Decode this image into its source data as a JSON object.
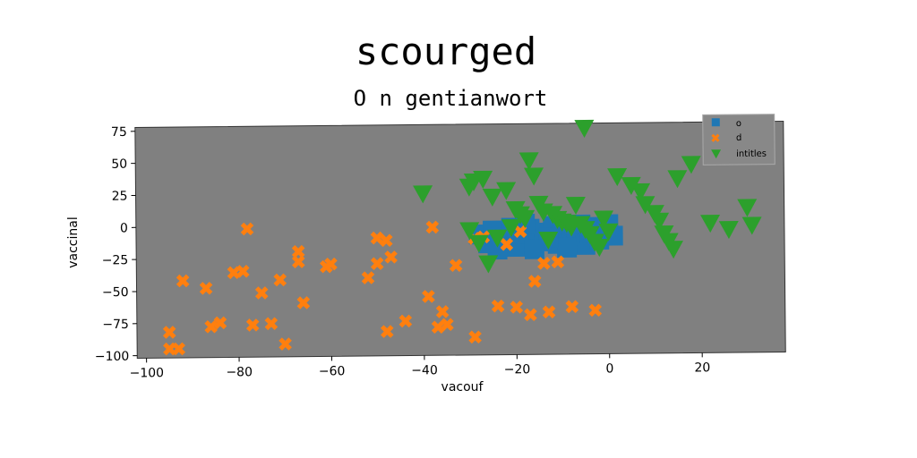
{
  "chart_data": {
    "type": "scatter",
    "title": "scourged",
    "subtitle": "O n gentianwort",
    "xlabel": "vacouf",
    "ylabel": "vaccinal",
    "xlim": [
      -102,
      38
    ],
    "ylim": [
      -102,
      78
    ],
    "xticks": [
      -100,
      -80,
      -60,
      -40,
      -20,
      0,
      20
    ],
    "yticks": [
      -100,
      -75,
      -50,
      -25,
      0,
      25,
      50,
      75
    ],
    "xtick_labels": [
      "−100",
      "−80",
      "−60",
      "−40",
      "−20",
      "0",
      "20"
    ],
    "ytick_labels": [
      "−100",
      "−75",
      "−50",
      "−25",
      "0",
      "25",
      "50",
      "75"
    ],
    "grid": false,
    "legend_position": "top-right",
    "plot_background": "#808080",
    "series": [
      {
        "name": "o",
        "marker": "square",
        "color": "#1f77b4",
        "points": [
          [
            -28,
            -8
          ],
          [
            -25,
            -5
          ],
          [
            -23,
            -12
          ],
          [
            -21,
            -3
          ],
          [
            -20,
            -18
          ],
          [
            -19,
            -8
          ],
          [
            -17,
            -4
          ],
          [
            -15,
            -14
          ],
          [
            -14,
            -7
          ],
          [
            -12,
            -2
          ],
          [
            -11,
            -16
          ],
          [
            -10,
            -9
          ],
          [
            -8,
            -4
          ],
          [
            -7,
            -12
          ],
          [
            -6,
            -1
          ],
          [
            -5,
            -17
          ],
          [
            -4,
            -8
          ],
          [
            -3,
            -3
          ],
          [
            -2,
            -13
          ],
          [
            -1,
            -6
          ],
          [
            0,
            -1
          ],
          [
            1,
            -10
          ],
          [
            -24,
            -20
          ],
          [
            -18,
            0
          ],
          [
            -9,
            -19
          ],
          [
            -13,
            -11
          ],
          [
            -16,
            -20
          ],
          [
            -26,
            -15
          ]
        ]
      },
      {
        "name": "d",
        "marker": "x",
        "color": "#ff7f0e",
        "points": [
          [
            -95,
            -82
          ],
          [
            -95,
            -95
          ],
          [
            -93,
            -95
          ],
          [
            -92,
            -42
          ],
          [
            -87,
            -48
          ],
          [
            -86,
            -78
          ],
          [
            -84,
            -75
          ],
          [
            -81,
            -36
          ],
          [
            -79,
            -35
          ],
          [
            -78,
            -2
          ],
          [
            -77,
            -77
          ],
          [
            -75,
            -52
          ],
          [
            -73,
            -76
          ],
          [
            -71,
            -42
          ],
          [
            -70,
            -92
          ],
          [
            -67,
            -20
          ],
          [
            -67,
            -28
          ],
          [
            -66,
            -60
          ],
          [
            -61,
            -32
          ],
          [
            -60,
            -30
          ],
          [
            -52,
            -41
          ],
          [
            -50,
            -10
          ],
          [
            -50,
            -30
          ],
          [
            -48,
            -12
          ],
          [
            -48,
            -83
          ],
          [
            -47,
            -25
          ],
          [
            -44,
            -75
          ],
          [
            -39,
            -56
          ],
          [
            -38,
            -2
          ],
          [
            -37,
            -80
          ],
          [
            -36,
            -68
          ],
          [
            -35,
            -78
          ],
          [
            -33,
            -32
          ],
          [
            -29,
            -11
          ],
          [
            -29,
            -88
          ],
          [
            -27,
            -10
          ],
          [
            -24,
            -64
          ],
          [
            -20,
            -65
          ],
          [
            -17,
            -71
          ],
          [
            -16,
            -45
          ],
          [
            -14,
            -31
          ],
          [
            -13,
            -69
          ],
          [
            -11,
            -30
          ],
          [
            -8,
            -65
          ],
          [
            -3,
            -68
          ],
          [
            -22,
            -16
          ],
          [
            -19,
            -6
          ]
        ]
      },
      {
        "name": "intitles",
        "marker": "triangle-down",
        "color": "#2ca02c",
        "points": [
          [
            -5,
            75
          ],
          [
            -40,
            25
          ],
          [
            -30,
            30
          ],
          [
            -29,
            34
          ],
          [
            -27,
            36
          ],
          [
            -25,
            22
          ],
          [
            -22,
            27
          ],
          [
            -20,
            12
          ],
          [
            -19,
            8
          ],
          [
            -18,
            5
          ],
          [
            -17,
            50
          ],
          [
            -16,
            38
          ],
          [
            -15,
            16
          ],
          [
            -14,
            10
          ],
          [
            -12,
            8
          ],
          [
            -11,
            4
          ],
          [
            -10,
            2
          ],
          [
            -9,
            1
          ],
          [
            -8,
            -2
          ],
          [
            -7,
            15
          ],
          [
            -6,
            0
          ],
          [
            -5,
            -4
          ],
          [
            -4,
            -8
          ],
          [
            -3,
            -14
          ],
          [
            -2,
            -18
          ],
          [
            -1,
            4
          ],
          [
            0,
            -6
          ],
          [
            2,
            37
          ],
          [
            5,
            30
          ],
          [
            7,
            25
          ],
          [
            8,
            15
          ],
          [
            10,
            8
          ],
          [
            11,
            2
          ],
          [
            12,
            -8
          ],
          [
            13,
            -14
          ],
          [
            14,
            -20
          ],
          [
            15,
            35
          ],
          [
            18,
            46
          ],
          [
            22,
            0
          ],
          [
            26,
            -5
          ],
          [
            30,
            12
          ],
          [
            31,
            -2
          ],
          [
            -28,
            -14
          ],
          [
            -26,
            -30
          ],
          [
            -24,
            -10
          ],
          [
            -21,
            -2
          ],
          [
            -13,
            -12
          ],
          [
            -30,
            -4
          ]
        ]
      }
    ]
  }
}
